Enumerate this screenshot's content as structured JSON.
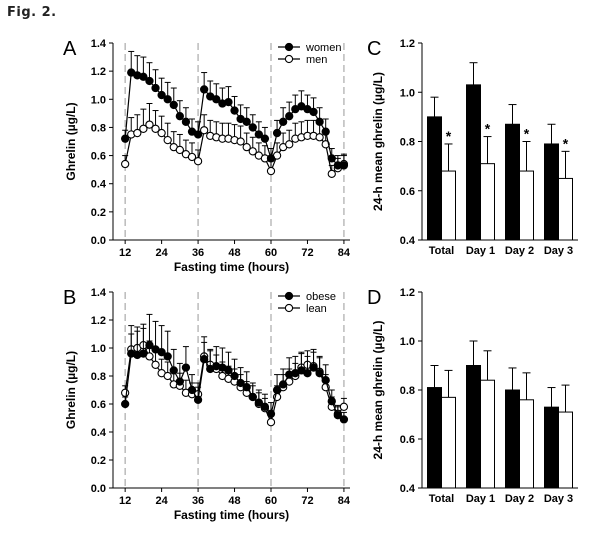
{
  "figure_label": "Fig. 2.",
  "chart_data": [
    {
      "panel": "A",
      "type": "line",
      "xlabel": "Fasting time (hours)",
      "ylabel": "Ghrelin (µg/L)",
      "xlim": [
        8,
        86
      ],
      "ylim": [
        0,
        1.4
      ],
      "xticks": [
        12,
        24,
        36,
        48,
        60,
        72,
        84
      ],
      "yticks": [
        0.0,
        0.2,
        0.4,
        0.6,
        0.8,
        1.0,
        1.2,
        1.4
      ],
      "vlines": [
        12,
        36,
        60,
        84
      ],
      "legend_position": "top-right",
      "x": [
        12,
        14,
        16,
        18,
        20,
        22,
        24,
        26,
        28,
        30,
        32,
        34,
        36,
        38,
        40,
        42,
        44,
        46,
        48,
        50,
        52,
        54,
        56,
        58,
        60,
        62,
        64,
        66,
        68,
        70,
        72,
        74,
        76,
        78,
        80,
        82,
        84
      ],
      "series": [
        {
          "name": "women",
          "marker": "filled",
          "values": [
            0.72,
            1.19,
            1.17,
            1.16,
            1.13,
            1.08,
            1.03,
            1.0,
            0.96,
            0.88,
            0.84,
            0.77,
            0.75,
            1.07,
            1.02,
            1.0,
            0.97,
            0.98,
            0.92,
            0.86,
            0.84,
            0.8,
            0.75,
            0.72,
            0.58,
            0.76,
            0.84,
            0.88,
            0.93,
            0.95,
            0.93,
            0.91,
            0.84,
            0.77,
            0.58,
            0.53,
            0.53
          ],
          "errors": [
            0.06,
            0.15,
            0.14,
            0.14,
            0.13,
            0.13,
            0.12,
            0.12,
            0.12,
            0.11,
            0.1,
            0.09,
            0.09,
            0.12,
            0.11,
            0.11,
            0.11,
            0.11,
            0.1,
            0.1,
            0.1,
            0.09,
            0.09,
            0.08,
            0.07,
            0.09,
            0.1,
            0.1,
            0.1,
            0.11,
            0.1,
            0.1,
            0.1,
            0.09,
            0.07,
            0.07,
            0.07
          ]
        },
        {
          "name": "men",
          "marker": "open",
          "values": [
            0.54,
            0.75,
            0.76,
            0.79,
            0.82,
            0.79,
            0.76,
            0.71,
            0.66,
            0.64,
            0.61,
            0.59,
            0.56,
            0.78,
            0.74,
            0.73,
            0.72,
            0.72,
            0.71,
            0.7,
            0.66,
            0.63,
            0.6,
            0.58,
            0.49,
            0.6,
            0.66,
            0.68,
            0.72,
            0.73,
            0.74,
            0.74,
            0.73,
            0.68,
            0.47,
            0.51,
            0.54
          ],
          "errors": [
            0.06,
            0.12,
            0.13,
            0.14,
            0.15,
            0.13,
            0.12,
            0.12,
            0.11,
            0.11,
            0.1,
            0.1,
            0.08,
            0.11,
            0.11,
            0.11,
            0.11,
            0.11,
            0.11,
            0.11,
            0.1,
            0.1,
            0.09,
            0.09,
            0.07,
            0.09,
            0.1,
            0.1,
            0.11,
            0.11,
            0.11,
            0.11,
            0.11,
            0.1,
            0.06,
            0.07,
            0.07
          ]
        }
      ]
    },
    {
      "panel": "B",
      "type": "line",
      "xlabel": "Fasting time (hours)",
      "ylabel": "Ghrelin (µg/L)",
      "xlim": [
        8,
        86
      ],
      "ylim": [
        0,
        1.4
      ],
      "xticks": [
        12,
        24,
        36,
        48,
        60,
        72,
        84
      ],
      "yticks": [
        0.0,
        0.2,
        0.4,
        0.6,
        0.8,
        1.0,
        1.2,
        1.4
      ],
      "vlines": [
        12,
        36,
        60,
        84
      ],
      "legend_position": "top-right",
      "x": [
        12,
        14,
        16,
        18,
        20,
        22,
        24,
        26,
        28,
        30,
        32,
        34,
        36,
        38,
        40,
        42,
        44,
        46,
        48,
        50,
        52,
        54,
        56,
        58,
        60,
        62,
        64,
        66,
        68,
        70,
        72,
        74,
        76,
        78,
        80,
        82,
        84
      ],
      "series": [
        {
          "name": "obese",
          "marker": "filled",
          "values": [
            0.6,
            0.96,
            0.95,
            0.96,
            1.02,
            0.99,
            0.97,
            0.94,
            0.84,
            0.76,
            0.86,
            0.7,
            0.63,
            0.92,
            0.85,
            0.87,
            0.86,
            0.84,
            0.8,
            0.75,
            0.72,
            0.65,
            0.61,
            0.58,
            0.53,
            0.7,
            0.74,
            0.81,
            0.82,
            0.84,
            0.82,
            0.86,
            0.82,
            0.77,
            0.62,
            0.52,
            0.49
          ],
          "errors": [
            0.05,
            0.2,
            0.2,
            0.21,
            0.22,
            0.2,
            0.19,
            0.18,
            0.15,
            0.13,
            0.15,
            0.11,
            0.09,
            0.16,
            0.14,
            0.14,
            0.14,
            0.13,
            0.12,
            0.11,
            0.11,
            0.1,
            0.09,
            0.09,
            0.08,
            0.11,
            0.11,
            0.12,
            0.12,
            0.13,
            0.12,
            0.13,
            0.12,
            0.11,
            0.08,
            0.06,
            0.05
          ]
        },
        {
          "name": "lean",
          "marker": "open",
          "values": [
            0.68,
            0.99,
            1.0,
            1.02,
            0.94,
            0.88,
            0.82,
            0.8,
            0.74,
            0.73,
            0.68,
            0.67,
            0.67,
            0.94,
            0.88,
            0.85,
            0.8,
            0.78,
            0.76,
            0.72,
            0.68,
            0.65,
            0.6,
            0.57,
            0.47,
            0.65,
            0.72,
            0.76,
            0.8,
            0.86,
            0.88,
            0.87,
            0.83,
            0.72,
            0.58,
            0.53,
            0.58
          ],
          "errors": [
            0.05,
            0.11,
            0.12,
            0.12,
            0.11,
            0.1,
            0.1,
            0.1,
            0.09,
            0.09,
            0.09,
            0.08,
            0.08,
            0.1,
            0.1,
            0.1,
            0.1,
            0.09,
            0.09,
            0.09,
            0.08,
            0.08,
            0.08,
            0.07,
            0.06,
            0.08,
            0.09,
            0.09,
            0.09,
            0.1,
            0.1,
            0.1,
            0.1,
            0.09,
            0.07,
            0.06,
            0.06
          ]
        }
      ]
    },
    {
      "panel": "C",
      "type": "bar",
      "ylabel": "24-h mean ghrelin (µg/L)",
      "ylim": [
        0.4,
        1.2
      ],
      "yticks": [
        0.4,
        0.6,
        0.8,
        1.0,
        1.2
      ],
      "categories": [
        "Total",
        "Day 1",
        "Day 2",
        "Day 3"
      ],
      "series": [
        {
          "name": "women",
          "fill": "#000000",
          "values": [
            0.9,
            1.03,
            0.87,
            0.79
          ],
          "errors": [
            0.08,
            0.09,
            0.08,
            0.08
          ]
        },
        {
          "name": "men",
          "fill": "#ffffff",
          "values": [
            0.68,
            0.71,
            0.68,
            0.65
          ],
          "errors": [
            0.11,
            0.11,
            0.12,
            0.11
          ]
        }
      ],
      "annotations": [
        "*",
        "*",
        "*",
        "*"
      ]
    },
    {
      "panel": "D",
      "type": "bar",
      "ylabel": "24-h mean ghrelin (µg/L)",
      "ylim": [
        0.4,
        1.2
      ],
      "yticks": [
        0.4,
        0.6,
        0.8,
        1.0,
        1.2
      ],
      "categories": [
        "Total",
        "Day 1",
        "Day 2",
        "Day 3"
      ],
      "series": [
        {
          "name": "obese",
          "fill": "#000000",
          "values": [
            0.81,
            0.9,
            0.8,
            0.73
          ],
          "errors": [
            0.09,
            0.1,
            0.09,
            0.08
          ]
        },
        {
          "name": "lean",
          "fill": "#ffffff",
          "values": [
            0.77,
            0.84,
            0.76,
            0.71
          ],
          "errors": [
            0.11,
            0.12,
            0.11,
            0.11
          ]
        }
      ],
      "annotations": []
    }
  ]
}
